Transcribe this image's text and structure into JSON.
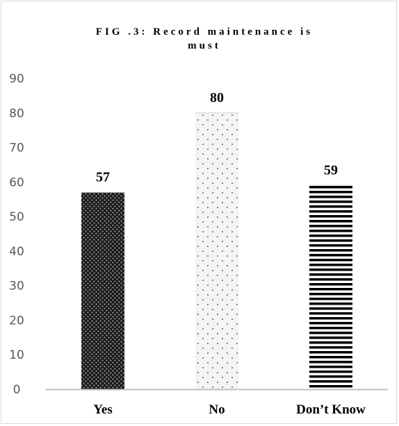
{
  "chart_data": {
    "type": "bar",
    "title_lines": [
      "FIG .3: Record maintenance is",
      "must"
    ],
    "categories": [
      "Yes",
      "No",
      "Don’t Know"
    ],
    "values": [
      57,
      80,
      59
    ],
    "data_labels": [
      "57",
      "80",
      "59"
    ],
    "yticks": [
      "0",
      "10",
      "20",
      "30",
      "40",
      "50",
      "60",
      "70",
      "80",
      "90"
    ],
    "ylim": [
      0,
      90
    ],
    "grid": false,
    "legend": "none",
    "bar_fills": [
      "dark-dots",
      "light-dots",
      "horizontal-stripes"
    ],
    "colors": {
      "bar_dark": "#1a1a1a",
      "bar_light": "#f2f2f2",
      "stripe": "#000000",
      "axis": "#bfbfbf",
      "tick_text": "#595959",
      "frame": "#d9d9d9"
    }
  }
}
